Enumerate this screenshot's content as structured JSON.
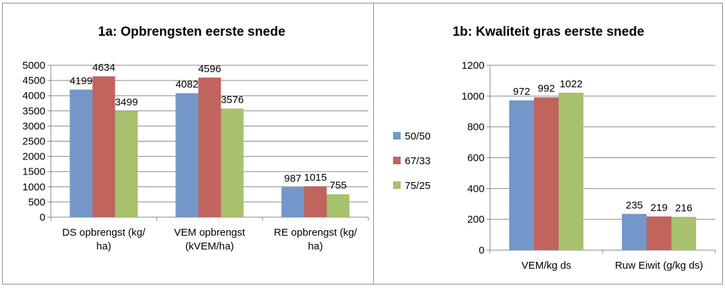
{
  "chart_data": [
    {
      "type": "bar",
      "title": "1a: Opbrengsten eerste snede",
      "categories": [
        [
          "DS opbrengst (kg/",
          "ha)"
        ],
        [
          "VEM opbrengst",
          "(kVEM/ha)"
        ],
        [
          "RE opbrengst (kg/",
          "ha)"
        ]
      ],
      "series": [
        {
          "name": "50/50",
          "values": [
            4199,
            4082,
            987
          ]
        },
        {
          "name": "67/33",
          "values": [
            4634,
            4596,
            1015
          ]
        },
        {
          "name": "75/25",
          "values": [
            3499,
            3576,
            755
          ]
        }
      ],
      "ylim": [
        0,
        5000
      ],
      "yticks": [
        0,
        500,
        1000,
        1500,
        2000,
        2500,
        3000,
        3500,
        4000,
        4500,
        5000
      ],
      "grid": true
    },
    {
      "type": "bar",
      "title": "1b: Kwaliteit gras eerste snede",
      "categories": [
        [
          "VEM/kg ds"
        ],
        [
          "Ruw Eiwit (g/kg ds)"
        ]
      ],
      "series": [
        {
          "name": "50/50",
          "values": [
            972,
            235
          ]
        },
        {
          "name": "67/33",
          "values": [
            992,
            219
          ]
        },
        {
          "name": "75/25",
          "values": [
            1022,
            216
          ]
        }
      ],
      "ylim": [
        0,
        1200
      ],
      "yticks": [
        0,
        200,
        400,
        600,
        800,
        1000,
        1200
      ],
      "grid": true,
      "legend": "left"
    }
  ],
  "colors": {
    "50/50": "#7397c8",
    "67/33": "#c0645d",
    "75/25": "#a8c16e",
    "grid": "#868686",
    "axis": "#868686"
  }
}
